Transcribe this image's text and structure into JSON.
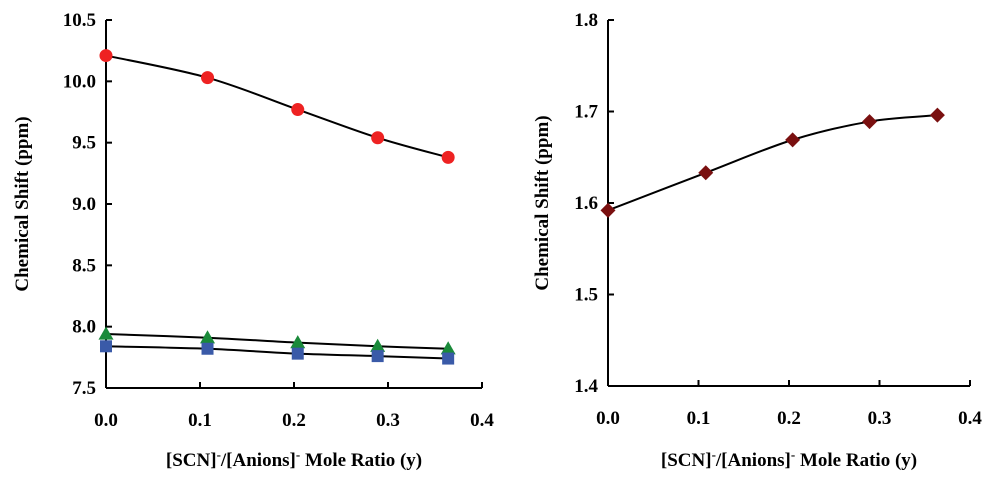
{
  "chart_data": [
    {
      "type": "line",
      "xlabel": "[SCN]⁻/[Anions]⁻ Mole Ratio (y)",
      "ylabel": "Chemical Shift (ppm)",
      "xlim": [
        0,
        0.4
      ],
      "ylim": [
        7.5,
        10.5
      ],
      "xticks": [
        "0.0",
        "0.1",
        "0.2",
        "0.3",
        "0.4"
      ],
      "yticks": [
        "7.5",
        "8.0",
        "8.5",
        "9.0",
        "9.5",
        "10.0",
        "10.5"
      ],
      "grid": false,
      "series": [
        {
          "marker": "circle",
          "color": "#ee2222",
          "x": [
            0,
            0.108,
            0.204,
            0.289,
            0.364
          ],
          "y": [
            10.21,
            10.03,
            9.77,
            9.54,
            9.38
          ]
        },
        {
          "marker": "triangle",
          "color": "#1a8a3a",
          "x": [
            0,
            0.108,
            0.204,
            0.289,
            0.364
          ],
          "y": [
            7.94,
            7.91,
            7.87,
            7.84,
            7.82
          ]
        },
        {
          "marker": "square",
          "color": "#3a5aa8",
          "x": [
            0,
            0.108,
            0.204,
            0.289,
            0.364
          ],
          "y": [
            7.84,
            7.82,
            7.78,
            7.76,
            7.74
          ]
        }
      ]
    },
    {
      "type": "line",
      "xlabel": "[SCN]⁻/[Anions]⁻ Mole Ratio (y)",
      "ylabel": "Chemical Shift (ppm)",
      "xlim": [
        0,
        0.4
      ],
      "ylim": [
        1.4,
        1.8
      ],
      "xticks": [
        "0.0",
        "0.1",
        "0.2",
        "0.3",
        "0.4"
      ],
      "yticks": [
        "1.4",
        "1.5",
        "1.6",
        "1.7",
        "1.8"
      ],
      "grid": false,
      "series": [
        {
          "marker": "diamond",
          "color": "#7a1010",
          "x": [
            0,
            0.108,
            0.204,
            0.289,
            0.364
          ],
          "y": [
            1.592,
            1.633,
            1.669,
            1.689,
            1.696
          ]
        }
      ]
    }
  ]
}
